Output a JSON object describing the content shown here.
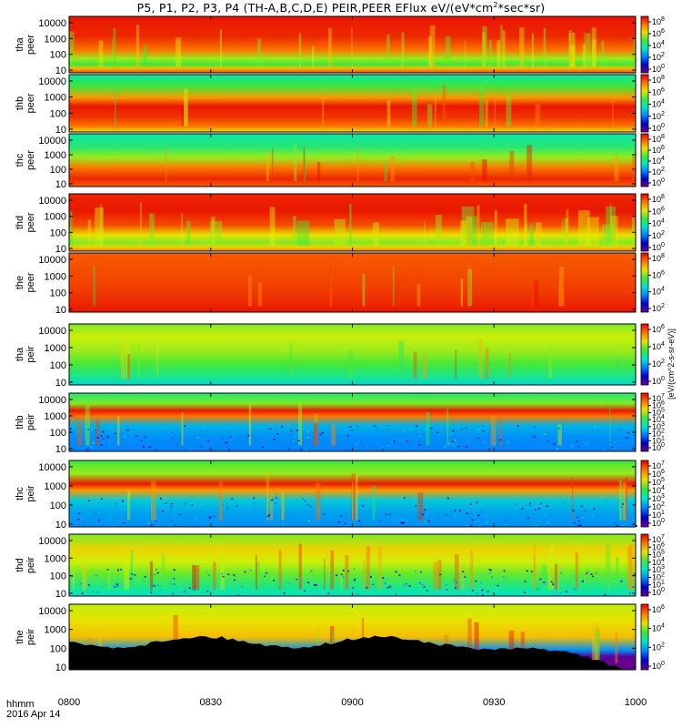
{
  "title": "P5, P1, P2, P3, P4 (TH-A,B,C,D,E) PEIR,PEER EFlux eV/(eV*cm",
  "title_sup": "2",
  "title_tail": "*sec*sr)",
  "footer": {
    "line1": "hhmm",
    "line2": "2016 Apr 14"
  },
  "colorbar_units": "[eV/(cm^2-s-sr-eV)]",
  "chart_data": {
    "type": "heatmap",
    "title": "P5, P1, P2, P3, P4 (TH-A,B,C,D,E) PEIR,PEER EFlux eV/(eV*cm2*sec*sr)",
    "x": {
      "label": "hhmm",
      "sublabel": "2016 Apr 14",
      "range": [
        "08:00",
        "10:00"
      ],
      "ticks": [
        "0800",
        "0830",
        "0900",
        "0930",
        "1000"
      ]
    },
    "y_scale": "log",
    "y_ticks": [
      "10",
      "100",
      "1000",
      "10000"
    ],
    "panels": [
      {
        "probe": "tha",
        "species": "peer",
        "label_line1": "tha",
        "label_line2": "peer",
        "cb_min_exp": 0,
        "cb_max_exp": 8,
        "cb_labels": [
          "10",
          "10",
          "10",
          "10",
          "10"
        ],
        "cb_exps": [
          "0",
          "2",
          "4",
          "6",
          "8"
        ]
      },
      {
        "probe": "thb",
        "species": "peer",
        "label_line1": "thb",
        "label_line2": "peer",
        "cb_min_exp": 0,
        "cb_max_exp": 8,
        "cb_labels": [
          "10",
          "10",
          "10",
          "10",
          "10"
        ],
        "cb_exps": [
          "0",
          "2",
          "4",
          "6",
          "8"
        ]
      },
      {
        "probe": "thc",
        "species": "peer",
        "label_line1": "thc",
        "label_line2": "peer",
        "cb_min_exp": 0,
        "cb_max_exp": 8,
        "cb_labels": [
          "10",
          "10",
          "10",
          "10",
          "10"
        ],
        "cb_exps": [
          "0",
          "2",
          "4",
          "6",
          "8"
        ]
      },
      {
        "probe": "thd",
        "species": "peer",
        "label_line1": "thd",
        "label_line2": "peer",
        "cb_min_exp": 0,
        "cb_max_exp": 8,
        "cb_labels": [
          "10",
          "10",
          "10",
          "10",
          "10"
        ],
        "cb_exps": [
          "0",
          "2",
          "4",
          "6",
          "8"
        ]
      },
      {
        "probe": "the",
        "species": "peer",
        "label_line1": "the",
        "label_line2": "peer",
        "cb_min_exp": 2,
        "cb_max_exp": 8,
        "cb_labels": [
          "10",
          "10",
          "10",
          "10"
        ],
        "cb_exps": [
          "2",
          "4",
          "6",
          "8"
        ]
      },
      {
        "probe": "tha",
        "species": "peir",
        "label_line1": "tha",
        "label_line2": "peir",
        "cb_min_exp": 0,
        "cb_max_exp": 6,
        "cb_labels": [
          "10",
          "10",
          "10",
          "10"
        ],
        "cb_exps": [
          "0",
          "2",
          "4",
          "6"
        ]
      },
      {
        "probe": "thb",
        "species": "peir",
        "label_line1": "thb",
        "label_line2": "peir",
        "cb_min_exp": 0,
        "cb_max_exp": 7,
        "cb_labels": [
          "10",
          "10",
          "10",
          "10",
          "10",
          "10",
          "10",
          "10"
        ],
        "cb_exps": [
          "0",
          "1",
          "2",
          "3",
          "4",
          "5",
          "6",
          "7"
        ]
      },
      {
        "probe": "thc",
        "species": "peir",
        "label_line1": "thc",
        "label_line2": "peir",
        "cb_min_exp": 0,
        "cb_max_exp": 7,
        "cb_labels": [
          "10",
          "10",
          "10",
          "10",
          "10",
          "10",
          "10",
          "10"
        ],
        "cb_exps": [
          "0",
          "1",
          "2",
          "3",
          "4",
          "5",
          "6",
          "7"
        ]
      },
      {
        "probe": "thd",
        "species": "peir",
        "label_line1": "thd",
        "label_line2": "peir",
        "cb_min_exp": 0,
        "cb_max_exp": 7,
        "cb_labels": [
          "10",
          "10",
          "10",
          "10",
          "10",
          "10",
          "10",
          "10"
        ],
        "cb_exps": [
          "0",
          "1",
          "2",
          "3",
          "4",
          "5",
          "6",
          "7"
        ]
      },
      {
        "probe": "the",
        "species": "peir",
        "label_line1": "the",
        "label_line2": "peir",
        "cb_min_exp": 0,
        "cb_max_exp": 6,
        "cb_labels": [
          "10",
          "10",
          "10",
          "10"
        ],
        "cb_exps": [
          "0",
          "2",
          "4",
          "6"
        ]
      }
    ]
  }
}
